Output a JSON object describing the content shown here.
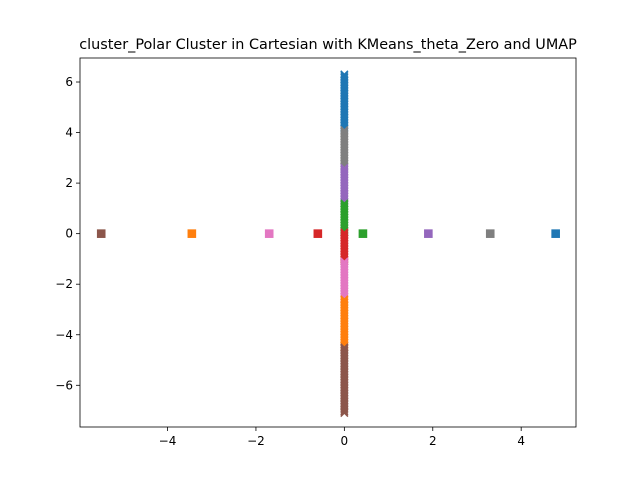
{
  "chart_data": {
    "type": "scatter",
    "title": "cluster_Polar Cluster in Cartesian with KMeans_theta_Zero and UMAP",
    "xlabel": "",
    "ylabel": "",
    "xlim": [
      -5.98,
      5.24
    ],
    "ylim": [
      -7.65,
      6.95
    ],
    "xticks": [
      -4,
      -2,
      0,
      2,
      4
    ],
    "yticks": [
      -6,
      -4,
      -2,
      0,
      2,
      4,
      6
    ],
    "grid": false,
    "legend": "none",
    "vertical_strip": {
      "x": 0,
      "marker": "x",
      "segments": [
        {
          "color": "#1f77b4",
          "y_start": 4.1,
          "y_end": 6.3
        },
        {
          "color": "#7f7f7f",
          "y_start": 2.6,
          "y_end": 4.1
        },
        {
          "color": "#9467bd",
          "y_start": 1.2,
          "y_end": 2.6
        },
        {
          "color": "#2ca02c",
          "y_start": 0.05,
          "y_end": 1.2
        },
        {
          "color": "#d62728",
          "y_start": -1.1,
          "y_end": 0.05
        },
        {
          "color": "#e377c2",
          "y_start": -2.6,
          "y_end": -1.1
        },
        {
          "color": "#ff7f0e",
          "y_start": -4.5,
          "y_end": -2.6
        },
        {
          "color": "#8c564b",
          "y_start": -7.1,
          "y_end": -4.5
        }
      ]
    },
    "square_points": [
      {
        "x": -5.5,
        "y": 0,
        "color": "#8c564b"
      },
      {
        "x": -3.45,
        "y": 0,
        "color": "#ff7f0e"
      },
      {
        "x": -1.7,
        "y": 0,
        "color": "#e377c2"
      },
      {
        "x": -0.6,
        "y": 0,
        "color": "#d62728"
      },
      {
        "x": 0.42,
        "y": 0,
        "color": "#2ca02c"
      },
      {
        "x": 1.9,
        "y": 0,
        "color": "#9467bd"
      },
      {
        "x": 3.3,
        "y": 0,
        "color": "#7f7f7f"
      },
      {
        "x": 4.78,
        "y": 0,
        "color": "#1f77b4"
      }
    ]
  }
}
